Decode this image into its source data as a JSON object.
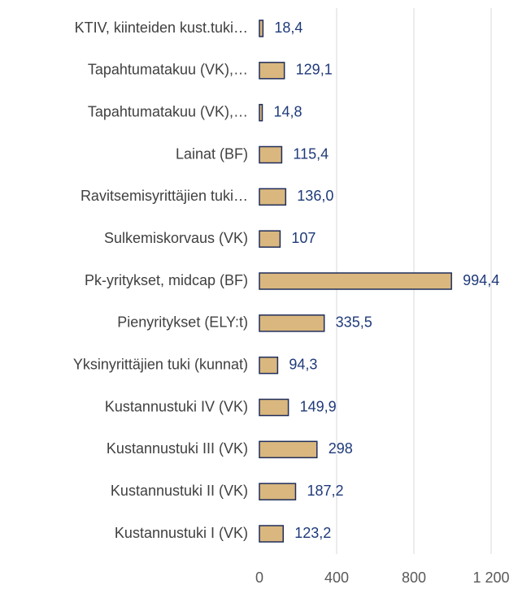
{
  "chart_data": {
    "type": "barh",
    "categories": [
      "KTIV, kiinteiden kust.tuki…",
      "Tapahtumatakuu (VK),…",
      "Tapahtumatakuu (VK),…",
      "Lainat (BF)",
      "Ravitsemisyrittäjien tuki…",
      "Sulkemiskorvaus (VK)",
      "Pk-yritykset, midcap (BF)",
      "Pienyritykset (ELY:t)",
      "Yksinyrittäjien tuki (kunnat)",
      "Kustannustuki IV (VK)",
      "Kustannustuki III (VK)",
      "Kustannustuki II (VK)",
      "Kustannustuki I (VK)"
    ],
    "values": [
      18.4,
      129.1,
      14.8,
      115.4,
      136.0,
      107,
      994.4,
      335.5,
      94.3,
      149.9,
      298,
      187.2,
      123.2
    ],
    "value_labels": [
      "18,4",
      "129,1",
      "14,8",
      "115,4",
      "136,0",
      "107",
      "994,4",
      "335,5",
      "94,3",
      "149,9",
      "298",
      "187,2",
      "123,2"
    ],
    "color": "#d9b77e",
    "xlim": [
      0,
      1200
    ],
    "xticks": [
      0,
      400,
      800,
      {
        "value": 1200,
        "label": "1 200"
      }
    ],
    "grid": true
  }
}
